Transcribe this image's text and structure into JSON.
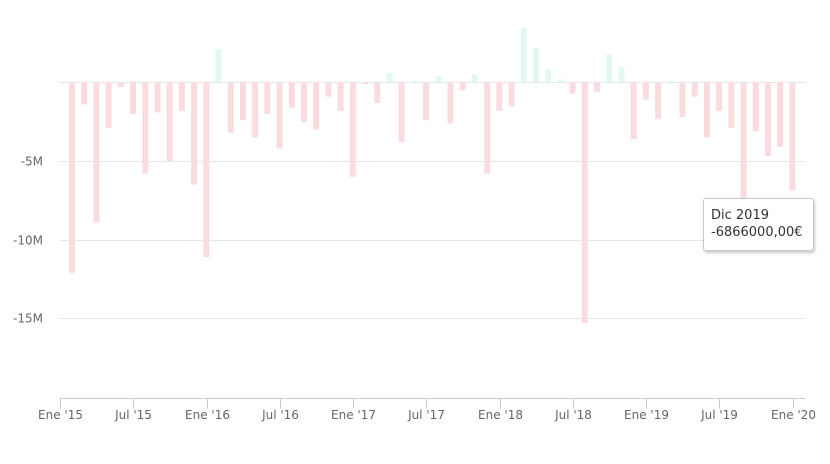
{
  "chart_data": {
    "type": "bar",
    "title": "",
    "xlabel": "",
    "ylabel": "",
    "ylim": [
      -20000000,
      4000000
    ],
    "yticks": [
      {
        "value": -5000000,
        "label": "-5M"
      },
      {
        "value": -10000000,
        "label": "-10M"
      },
      {
        "value": -15000000,
        "label": "-15M"
      }
    ],
    "xticks": [
      {
        "index": 0,
        "label": "Ene '15"
      },
      {
        "index": 6,
        "label": "Jul '15"
      },
      {
        "index": 12,
        "label": "Ene '16"
      },
      {
        "index": 18,
        "label": "Jul '16"
      },
      {
        "index": 24,
        "label": "Ene '17"
      },
      {
        "index": 30,
        "label": "Jul '17"
      },
      {
        "index": 36,
        "label": "Ene '18"
      },
      {
        "index": 42,
        "label": "Jul '18"
      },
      {
        "index": 48,
        "label": "Ene '19"
      },
      {
        "index": 54,
        "label": "Jul '19"
      },
      {
        "index": 60,
        "label": "Ene '20"
      }
    ],
    "colors": {
      "negative": "#fadcdf",
      "positive": "#e2f8f1"
    },
    "categories": [
      "Ene 2015",
      "Feb 2015",
      "Mar 2015",
      "Abr 2015",
      "May 2015",
      "Jun 2015",
      "Jul 2015",
      "Ago 2015",
      "Sep 2015",
      "Oct 2015",
      "Nov 2015",
      "Dic 2015",
      "Ene 2016",
      "Feb 2016",
      "Mar 2016",
      "Abr 2016",
      "May 2016",
      "Jun 2016",
      "Jul 2016",
      "Ago 2016",
      "Sep 2016",
      "Oct 2016",
      "Nov 2016",
      "Dic 2016",
      "Ene 2017",
      "Feb 2017",
      "Mar 2017",
      "Abr 2017",
      "May 2017",
      "Jun 2017",
      "Jul 2017",
      "Ago 2017",
      "Sep 2017",
      "Oct 2017",
      "Nov 2017",
      "Dic 2017",
      "Ene 2018",
      "Feb 2018",
      "Mar 2018",
      "Abr 2018",
      "May 2018",
      "Jun 2018",
      "Jul 2018",
      "Ago 2018",
      "Sep 2018",
      "Oct 2018",
      "Nov 2018",
      "Dic 2018",
      "Ene 2019",
      "Feb 2019",
      "Mar 2019",
      "Abr 2019",
      "May 2019",
      "Jun 2019",
      "Jul 2019",
      "Ago 2019",
      "Sep 2019",
      "Oct 2019",
      "Nov 2019",
      "Dic 2019"
    ],
    "values": [
      -12100000,
      -1400000,
      -8900000,
      -2900000,
      -300000,
      -2000000,
      -5800000,
      -1900000,
      -5000000,
      -1800000,
      -6500000,
      -11100000,
      2100000,
      -3200000,
      -2400000,
      -3500000,
      -2000000,
      -4200000,
      -1600000,
      -2500000,
      -3000000,
      -900000,
      -1800000,
      -6000000,
      -100000,
      -1300000,
      600000,
      -3800000,
      100000,
      -2400000,
      400000,
      -2600000,
      -500000,
      500000,
      -5800000,
      -1800000,
      -1500000,
      3500000,
      2200000,
      800000,
      200000,
      -700000,
      -15300000,
      -600000,
      1800000,
      1000000,
      -3600000,
      -1100000,
      -2300000,
      100000,
      -2200000,
      -900000,
      -3500000,
      -1800000,
      -2900000,
      -7400000,
      -3100000,
      -4700000,
      -4100000,
      -6866000
    ]
  },
  "tooltip": {
    "title": "Dic 2019",
    "value": "-6866000,00€"
  }
}
